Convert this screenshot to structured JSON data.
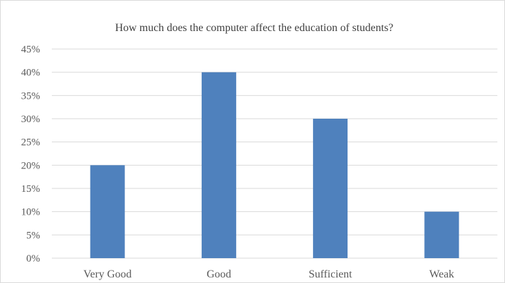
{
  "chart_data": {
    "type": "bar",
    "title": "How much does the computer affect the education of students?",
    "xlabel": "",
    "ylabel": "",
    "categories": [
      "Very Good",
      "Good",
      "Sufficient",
      "Weak"
    ],
    "series": [
      {
        "values": [
          20,
          40,
          30,
          10
        ],
        "color": "#4f81bd"
      }
    ],
    "ylim": [
      0,
      45
    ],
    "yticks": [
      0,
      5,
      10,
      15,
      20,
      25,
      30,
      35,
      40,
      45
    ],
    "ytick_labels": [
      "0%",
      "5%",
      "10%",
      "15%",
      "20%",
      "25%",
      "30%",
      "35%",
      "40%",
      "45%"
    ],
    "grid": true,
    "legend": "none",
    "colors": {
      "bar": "#4f81bd",
      "grid": "#d9d9d9",
      "text": "#595959"
    }
  }
}
